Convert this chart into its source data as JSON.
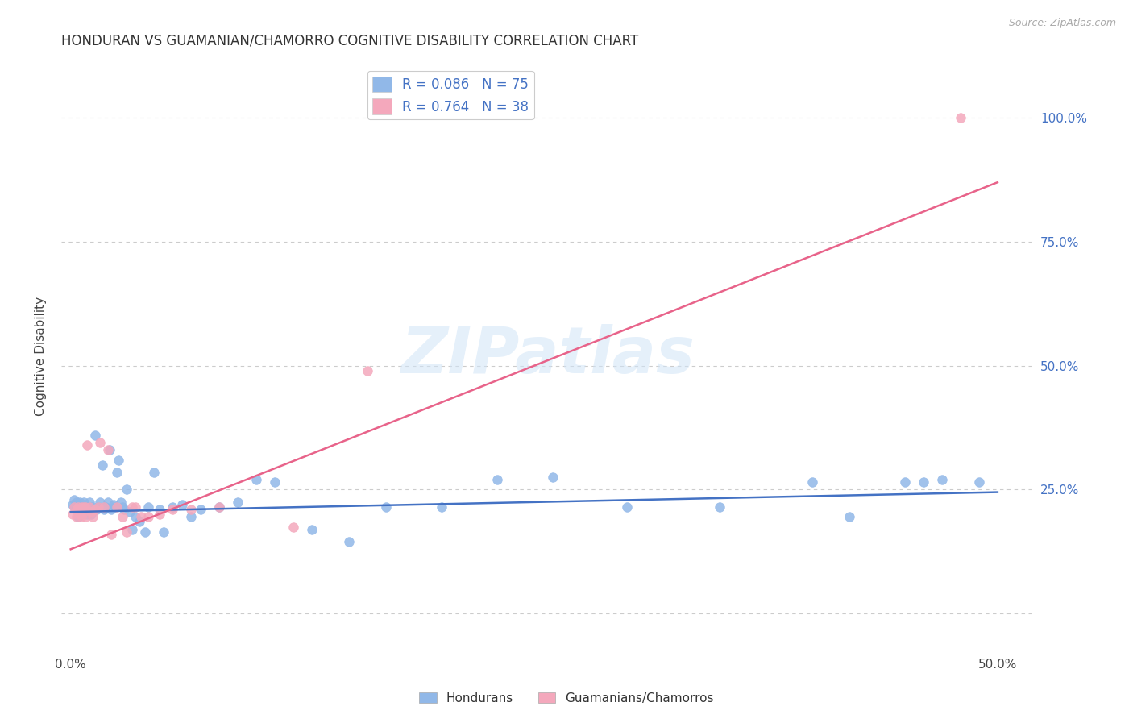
{
  "title": "HONDURAN VS GUAMANIAN/CHAMORRO COGNITIVE DISABILITY CORRELATION CHART",
  "source": "Source: ZipAtlas.com",
  "ylabel": "Cognitive Disability",
  "xlim": [
    -0.005,
    0.52
  ],
  "ylim": [
    -0.08,
    1.12
  ],
  "ytick_labels": [
    "",
    "25.0%",
    "50.0%",
    "75.0%",
    "100.0%"
  ],
  "ytick_values": [
    0.0,
    0.25,
    0.5,
    0.75,
    1.0
  ],
  "xtick_values": [
    0.0,
    0.1,
    0.2,
    0.3,
    0.4,
    0.5
  ],
  "honduran_R": 0.086,
  "honduran_N": 75,
  "guamanian_R": 0.764,
  "guamanian_N": 38,
  "honduran_color": "#91b8e8",
  "guamanian_color": "#f4a8bc",
  "honduran_line_color": "#4472c4",
  "guamanian_line_color": "#e8638a",
  "honduran_line": [
    0.205,
    0.245
  ],
  "guamanian_line": [
    0.13,
    0.87
  ],
  "watermark": "ZIPatlas",
  "legend_label_1": "Hondurans",
  "legend_label_2": "Guamanians/Chamorros",
  "honduran_x": [
    0.001,
    0.002,
    0.002,
    0.003,
    0.003,
    0.003,
    0.004,
    0.004,
    0.005,
    0.005,
    0.005,
    0.006,
    0.006,
    0.006,
    0.007,
    0.007,
    0.007,
    0.008,
    0.008,
    0.009,
    0.009,
    0.01,
    0.01,
    0.011,
    0.011,
    0.012,
    0.013,
    0.014,
    0.015,
    0.016,
    0.017,
    0.018,
    0.019,
    0.02,
    0.021,
    0.022,
    0.023,
    0.024,
    0.025,
    0.026,
    0.027,
    0.028,
    0.029,
    0.03,
    0.032,
    0.033,
    0.035,
    0.037,
    0.04,
    0.042,
    0.045,
    0.048,
    0.05,
    0.055,
    0.06,
    0.065,
    0.07,
    0.08,
    0.09,
    0.1,
    0.11,
    0.13,
    0.15,
    0.17,
    0.2,
    0.23,
    0.26,
    0.3,
    0.35,
    0.4,
    0.42,
    0.45,
    0.46,
    0.47,
    0.49
  ],
  "honduran_y": [
    0.22,
    0.215,
    0.23,
    0.21,
    0.215,
    0.225,
    0.195,
    0.22,
    0.205,
    0.215,
    0.225,
    0.21,
    0.2,
    0.215,
    0.205,
    0.215,
    0.225,
    0.21,
    0.215,
    0.2,
    0.21,
    0.215,
    0.225,
    0.2,
    0.21,
    0.215,
    0.36,
    0.21,
    0.215,
    0.225,
    0.3,
    0.21,
    0.215,
    0.225,
    0.33,
    0.21,
    0.22,
    0.215,
    0.285,
    0.31,
    0.225,
    0.215,
    0.21,
    0.25,
    0.205,
    0.17,
    0.195,
    0.185,
    0.165,
    0.215,
    0.285,
    0.21,
    0.165,
    0.215,
    0.22,
    0.195,
    0.21,
    0.215,
    0.225,
    0.27,
    0.265,
    0.17,
    0.145,
    0.215,
    0.215,
    0.27,
    0.275,
    0.215,
    0.215,
    0.265,
    0.195,
    0.265,
    0.265,
    0.27,
    0.265
  ],
  "guamanian_x": [
    0.001,
    0.002,
    0.003,
    0.003,
    0.004,
    0.004,
    0.005,
    0.005,
    0.006,
    0.006,
    0.007,
    0.007,
    0.008,
    0.008,
    0.009,
    0.01,
    0.011,
    0.012,
    0.013,
    0.015,
    0.016,
    0.018,
    0.02,
    0.022,
    0.025,
    0.028,
    0.03,
    0.033,
    0.035,
    0.038,
    0.042,
    0.048,
    0.055,
    0.065,
    0.08,
    0.12,
    0.16,
    0.48
  ],
  "guamanian_y": [
    0.2,
    0.215,
    0.195,
    0.21,
    0.205,
    0.215,
    0.2,
    0.21,
    0.195,
    0.215,
    0.205,
    0.215,
    0.195,
    0.215,
    0.34,
    0.215,
    0.205,
    0.195,
    0.21,
    0.215,
    0.345,
    0.215,
    0.33,
    0.16,
    0.215,
    0.195,
    0.165,
    0.215,
    0.215,
    0.195,
    0.195,
    0.2,
    0.21,
    0.21,
    0.215,
    0.175,
    0.49,
    1.0
  ]
}
